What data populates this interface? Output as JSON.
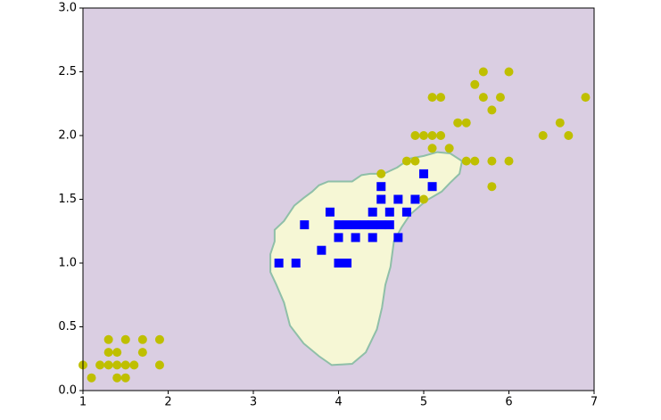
{
  "chart_data": {
    "type": "scatter",
    "background": "#dacee2",
    "regions": [
      {
        "color": "#f6f7d5",
        "edge": "#8fbfa8",
        "x": [
          3.2,
          3.2,
          3.25,
          3.25,
          3.36,
          3.41,
          3.48,
          3.59,
          3.69,
          3.77,
          3.88,
          4.16,
          4.27,
          4.37,
          4.53,
          4.69,
          4.84,
          5.0,
          5.16,
          5.31,
          5.45,
          5.42,
          5.31,
          5.21,
          5.03,
          4.84,
          4.74,
          4.65,
          4.61,
          4.55,
          4.51,
          4.45,
          4.32,
          4.16,
          3.92,
          3.77,
          3.59,
          3.43,
          3.36,
          3.27,
          3.2
        ],
        "y": [
          1.0,
          1.07,
          1.17,
          1.26,
          1.33,
          1.38,
          1.45,
          1.51,
          1.56,
          1.61,
          1.64,
          1.64,
          1.69,
          1.7,
          1.7,
          1.75,
          1.82,
          1.84,
          1.87,
          1.86,
          1.8,
          1.7,
          1.63,
          1.56,
          1.49,
          1.38,
          1.28,
          1.17,
          0.97,
          0.83,
          0.65,
          0.48,
          0.3,
          0.21,
          0.2,
          0.27,
          0.37,
          0.51,
          0.69,
          0.83,
          0.93
        ]
      }
    ],
    "series": [
      {
        "marker": "circle",
        "color": "#bfbf00",
        "x": [
          1.0,
          1.1,
          1.2,
          1.3,
          1.3,
          1.3,
          1.4,
          1.4,
          1.4,
          1.5,
          1.5,
          1.5,
          1.6,
          1.7,
          1.7,
          1.9,
          1.9,
          4.5,
          5.0,
          4.8,
          4.9,
          4.9,
          5.0,
          5.1,
          5.1,
          5.2,
          5.3,
          5.1,
          5.2,
          5.4,
          5.5,
          5.5,
          5.6,
          5.6,
          5.7,
          5.7,
          5.8,
          5.8,
          5.8,
          5.9,
          6.0,
          6.0,
          6.4,
          6.6,
          6.7,
          6.9
        ],
        "y": [
          0.2,
          0.1,
          0.2,
          0.2,
          0.3,
          0.4,
          0.1,
          0.2,
          0.3,
          0.1,
          0.2,
          0.4,
          0.2,
          0.3,
          0.4,
          0.2,
          0.4,
          1.7,
          1.5,
          1.8,
          1.8,
          2.0,
          2.0,
          2.0,
          1.9,
          2.0,
          1.9,
          2.3,
          2.3,
          2.1,
          2.1,
          1.8,
          1.8,
          2.4,
          2.5,
          2.3,
          2.2,
          1.8,
          1.6,
          2.3,
          2.5,
          1.8,
          2.0,
          2.1,
          2.0,
          2.3
        ]
      },
      {
        "marker": "square",
        "color": "#0000ff",
        "x": [
          3.3,
          3.5,
          3.6,
          3.8,
          3.9,
          4.0,
          4.0,
          4.0,
          4.1,
          4.1,
          4.2,
          4.2,
          4.3,
          4.4,
          4.4,
          4.4,
          4.5,
          4.5,
          4.5,
          4.6,
          4.6,
          4.7,
          4.7,
          4.8,
          4.9,
          5.0,
          5.1
        ],
        "y": [
          1.0,
          1.0,
          1.3,
          1.1,
          1.4,
          1.3,
          1.2,
          1.0,
          1.0,
          1.3,
          1.3,
          1.2,
          1.3,
          1.4,
          1.3,
          1.2,
          1.5,
          1.6,
          1.3,
          1.4,
          1.3,
          1.5,
          1.2,
          1.4,
          1.5,
          1.7,
          1.6
        ]
      }
    ],
    "xlim": [
      1,
      7
    ],
    "ylim": [
      0,
      3
    ],
    "xticks": [
      1,
      2,
      3,
      4,
      5,
      6,
      7
    ],
    "yticks": [
      {
        "value": 0,
        "label": "0.0"
      },
      0.5,
      {
        "value": 1,
        "label": "1.0"
      },
      1.5,
      {
        "value": 2,
        "label": "2.0"
      },
      2.5,
      {
        "value": 3,
        "label": "3.0"
      }
    ]
  }
}
